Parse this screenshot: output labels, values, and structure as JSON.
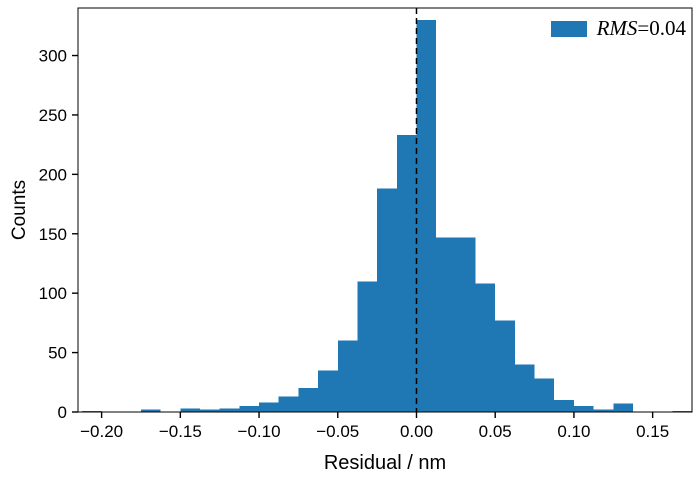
{
  "figure": {
    "background": "#ffffff",
    "xlabel": "Residual / nm",
    "ylabel": "Counts",
    "legend": {
      "rms_label": "RMS",
      "value_text": "=0.04",
      "swatch_color": "#1f77b4"
    }
  },
  "chart_data": {
    "type": "bar",
    "subtype": "histogram",
    "title": "",
    "xlabel": "Residual / nm",
    "ylabel": "Counts",
    "xlim": [
      -0.215,
      0.175
    ],
    "ylim": [
      0,
      340
    ],
    "grid": false,
    "legend_position": "upper-right",
    "legend_text": "RMS=0.04",
    "bar_color": "#1f77b4",
    "axis_color": "#000000",
    "bin_start": -0.225,
    "bin_width": 0.0125,
    "counts": [
      0,
      1,
      0,
      0,
      2,
      0,
      3,
      2,
      3,
      5,
      8,
      13,
      20,
      35,
      60,
      110,
      188,
      233,
      330,
      147,
      147,
      108,
      77,
      40,
      28,
      10,
      5,
      2,
      7,
      0,
      0,
      1
    ],
    "x_ticks": [
      {
        "value": -0.2,
        "label": "−0.20"
      },
      {
        "value": -0.15,
        "label": "−0.15"
      },
      {
        "value": -0.1,
        "label": "−0.10"
      },
      {
        "value": -0.05,
        "label": "−0.05"
      },
      {
        "value": 0.0,
        "label": "0.00"
      },
      {
        "value": 0.05,
        "label": "0.05"
      },
      {
        "value": 0.1,
        "label": "0.10"
      },
      {
        "value": 0.15,
        "label": "0.15"
      }
    ],
    "y_ticks": [
      {
        "value": 0,
        "label": "0"
      },
      {
        "value": 50,
        "label": "50"
      },
      {
        "value": 100,
        "label": "100"
      },
      {
        "value": 150,
        "label": "150"
      },
      {
        "value": 200,
        "label": "200"
      },
      {
        "value": 250,
        "label": "250"
      },
      {
        "value": 300,
        "label": "300"
      }
    ],
    "vline": {
      "x": 0.0,
      "color": "#000000",
      "style": "dashed"
    }
  }
}
